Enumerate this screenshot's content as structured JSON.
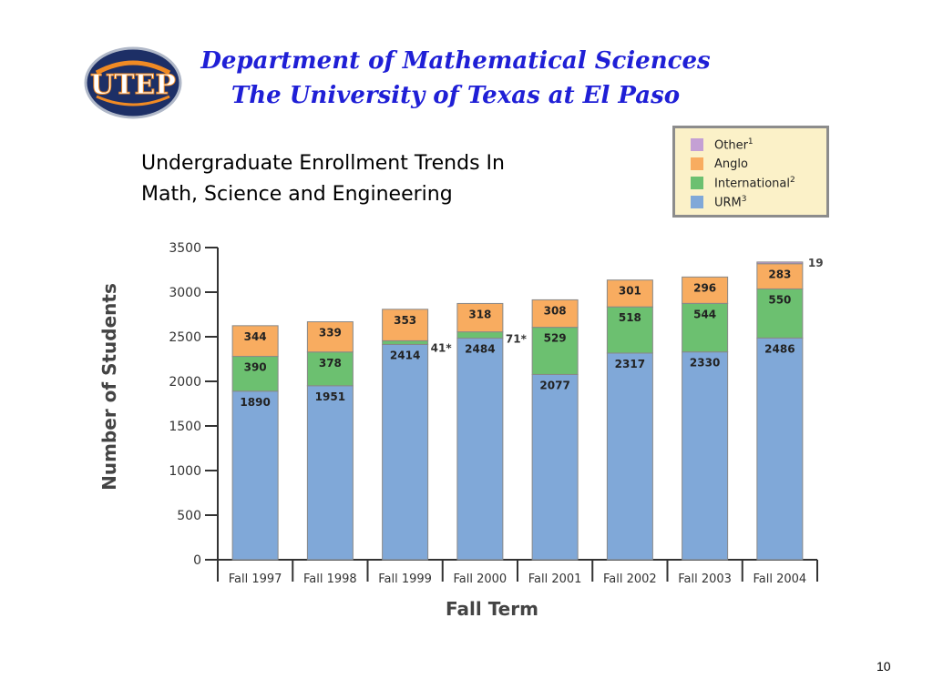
{
  "header": {
    "line1": "Department of Mathematical Sciences",
    "line2": "The University of Texas at El Paso",
    "logo_text": "UTEP"
  },
  "page_number": "10",
  "colors": {
    "urm": "#80a8d8",
    "international": "#6cc070",
    "anglo": "#f8ac60",
    "other": "#c4a0d4",
    "bar_stroke": "#888888",
    "header_blue": "#1f1fd6",
    "logo_navy": "#1d2f66",
    "logo_orange": "#f08a24"
  },
  "legend": {
    "items": [
      {
        "key": "other",
        "label": "Other",
        "sup": "1"
      },
      {
        "key": "anglo",
        "label": "Anglo",
        "sup": ""
      },
      {
        "key": "international",
        "label": "International",
        "sup": "2"
      },
      {
        "key": "urm",
        "label": "URM",
        "sup": "3"
      }
    ]
  },
  "chart_data": {
    "type": "bar",
    "stacked": true,
    "title_lines": [
      "Undergraduate Enrollment Trends In",
      "Math, Science and Engineering"
    ],
    "xlabel": "Fall Term",
    "ylabel": "Number of Students",
    "ylim": [
      0,
      3500
    ],
    "yticks": [
      0,
      500,
      1000,
      1500,
      2000,
      2500,
      3000,
      3500
    ],
    "categories": [
      "Fall 1997",
      "Fall 1998",
      "Fall 1999",
      "Fall 2000",
      "Fall 2001",
      "Fall 2002",
      "Fall 2003",
      "Fall 2004"
    ],
    "series": [
      {
        "key": "urm",
        "name": "URM",
        "values": [
          1890,
          1951,
          2414,
          2484,
          2077,
          2317,
          2330,
          2486
        ]
      },
      {
        "key": "international",
        "name": "International",
        "values": [
          390,
          378,
          41,
          71,
          529,
          518,
          544,
          550
        ]
      },
      {
        "key": "anglo",
        "name": "Anglo",
        "values": [
          344,
          339,
          353,
          318,
          308,
          301,
          296,
          283
        ]
      },
      {
        "key": "other",
        "name": "Other",
        "values": [
          0,
          0,
          0,
          0,
          0,
          0,
          0,
          19
        ]
      }
    ],
    "labels": {
      "urm": [
        "1890",
        "1951",
        "2414",
        "2484",
        "2077",
        "2317",
        "2330",
        "2486"
      ],
      "international": [
        "390",
        "378",
        "41*",
        "71*",
        "529",
        "518",
        "544",
        "550"
      ],
      "anglo": [
        "344",
        "339",
        "353",
        "318",
        "308",
        "301",
        "296",
        "283"
      ],
      "other": [
        "",
        "",
        "",
        "",
        "",
        "",
        "",
        "19"
      ]
    },
    "grid": false
  }
}
